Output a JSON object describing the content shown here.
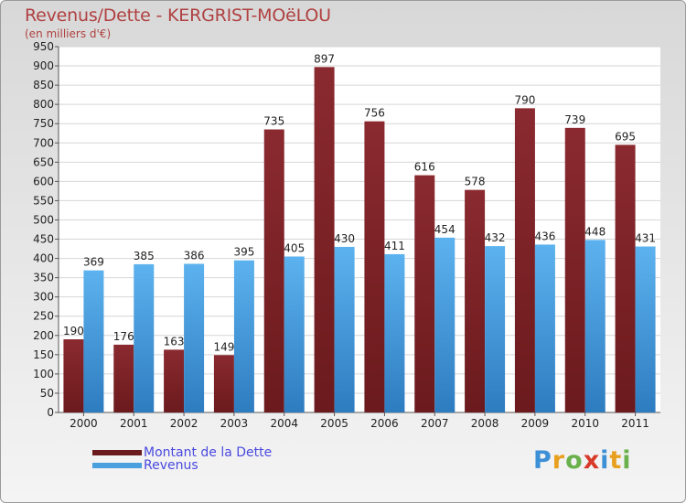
{
  "chart_data": {
    "type": "bar",
    "title": "Revenus/Dette - KERGRIST-MOëLOU",
    "subtitle": "(en milliers d'€)",
    "categories": [
      "2000",
      "2001",
      "2002",
      "2003",
      "2004",
      "2005",
      "2006",
      "2007",
      "2008",
      "2009",
      "2010",
      "2011"
    ],
    "series": [
      {
        "name": "Montant de la Dette",
        "color": "#6b1a1d",
        "values": [
          190,
          176,
          163,
          149,
          735,
          897,
          756,
          616,
          578,
          790,
          739,
          695
        ]
      },
      {
        "name": "Revenus",
        "color": "#4a9fdf",
        "values": [
          369,
          385,
          386,
          395,
          405,
          430,
          411,
          454,
          432,
          436,
          448,
          431
        ]
      }
    ],
    "ylim": [
      0,
      950
    ],
    "ytick_step": 50,
    "grid": true,
    "legend_position": "bottom-left"
  },
  "logo": {
    "letters": [
      {
        "ch": "P",
        "color": "#3d8fd6"
      },
      {
        "ch": "r",
        "color": "#e8a020"
      },
      {
        "ch": "o",
        "color": "#6ab04c"
      },
      {
        "ch": "x",
        "color": "#d83a2a"
      },
      {
        "ch": "i",
        "color": "#3d8fd6"
      },
      {
        "ch": "t",
        "color": "#e8a020"
      },
      {
        "ch": "i",
        "color": "#6ab04c"
      }
    ]
  }
}
